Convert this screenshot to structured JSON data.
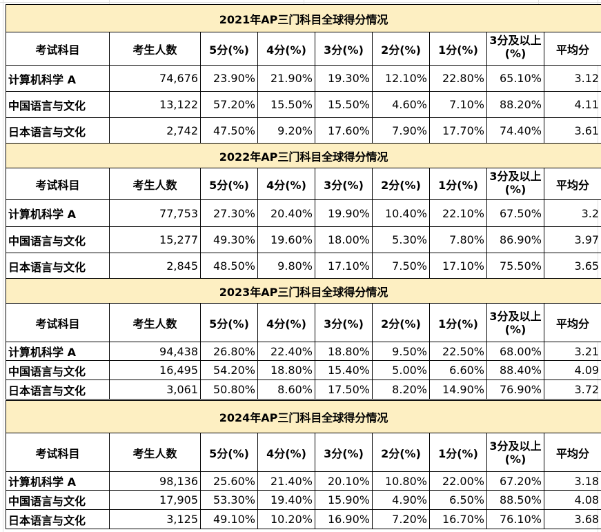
{
  "columns": [
    "考试科目",
    "考生人数",
    "5分(%)",
    "4分(%)",
    "3分(%)",
    "2分(%)",
    "1分(%)",
    "3分及以上(%)",
    "平均分"
  ],
  "sections": [
    {
      "title": "2021年AP三门科目全球得分情况",
      "rows": [
        [
          "计算机科学 A",
          "74,676",
          "23.90%",
          "21.90%",
          "19.30%",
          "12.10%",
          "22.80%",
          "65.10%",
          "3.12"
        ],
        [
          "中国语言与文化",
          "13,122",
          "57.20%",
          "15.50%",
          "15.50%",
          "4.60%",
          "7.10%",
          "88.20%",
          "4.11"
        ],
        [
          "日本语言与文化",
          "2,742",
          "47.50%",
          "9.20%",
          "17.60%",
          "7.90%",
          "17.70%",
          "74.40%",
          "3.61"
        ]
      ]
    },
    {
      "title": "2022年AP三门科目全球得分情况",
      "rows": [
        [
          "计算机科学 A",
          "77,753",
          "27.30%",
          "20.40%",
          "19.90%",
          "10.40%",
          "22.10%",
          "67.50%",
          "3.2"
        ],
        [
          "中国语言与文化",
          "15,277",
          "49.30%",
          "19.60%",
          "18.00%",
          "5.30%",
          "7.80%",
          "86.90%",
          "3.97"
        ],
        [
          "日本语言与文化",
          "2,845",
          "48.50%",
          "9.80%",
          "17.10%",
          "7.50%",
          "17.10%",
          "75.50%",
          "3.65"
        ]
      ]
    },
    {
      "title": "2023年AP三门科目全球得分情况",
      "rows": [
        [
          "计算机科学 A",
          "94,438",
          "26.80%",
          "22.40%",
          "18.80%",
          "9.50%",
          "22.50%",
          "68.00%",
          "3.21"
        ],
        [
          "中国语言与文化",
          "16,495",
          "54.20%",
          "18.80%",
          "15.40%",
          "5.00%",
          "6.60%",
          "88.40%",
          "4.09"
        ],
        [
          "日本语言与文化",
          "3,061",
          "50.80%",
          "8.60%",
          "17.50%",
          "8.20%",
          "14.90%",
          "76.90%",
          "3.72"
        ]
      ]
    },
    {
      "title": "2024年AP三门科目全球得分情况",
      "rows": [
        [
          "计算机科学 A",
          "98,136",
          "25.60%",
          "21.40%",
          "20.10%",
          "10.80%",
          "22.00%",
          "67.20%",
          "3.18"
        ],
        [
          "中国语言与文化",
          "17,905",
          "53.30%",
          "19.40%",
          "15.90%",
          "4.90%",
          "6.50%",
          "88.50%",
          "4.08"
        ],
        [
          "日本语言与文化",
          "3,125",
          "49.10%",
          "10.20%",
          "16.90%",
          "7.20%",
          "16.70%",
          "76.10%",
          "3.68"
        ]
      ]
    }
  ]
}
